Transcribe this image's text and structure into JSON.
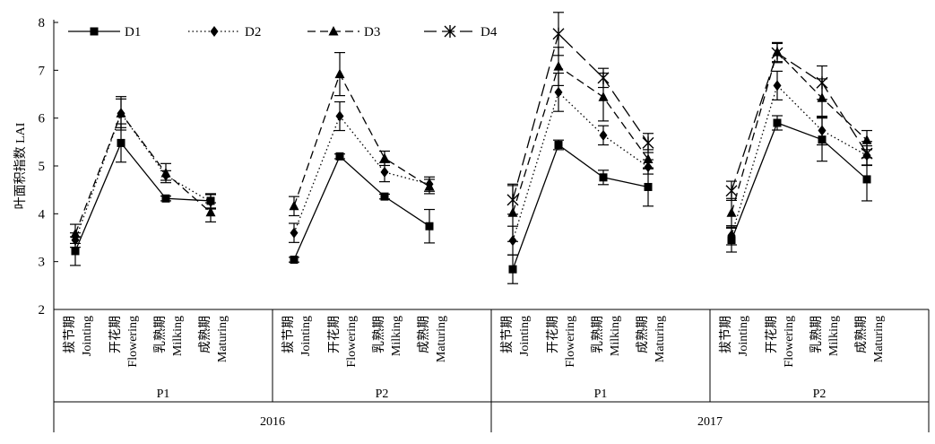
{
  "chart_data": {
    "type": "line",
    "ylabel": "叶面积指数 LAI",
    "ylim": [
      2,
      8
    ],
    "yticks": [
      2,
      3,
      4,
      5,
      6,
      7,
      8
    ],
    "grid": false,
    "legend_position": "top",
    "stage_labels": [
      {
        "zh": "拔节期",
        "en": "Jointing"
      },
      {
        "zh": "开花期",
        "en": "Flowering"
      },
      {
        "zh": "乳熟期",
        "en": "Milking"
      },
      {
        "zh": "成熟期",
        "en": "Maturing"
      }
    ],
    "groups": [
      {
        "period": "P1",
        "year": "2016"
      },
      {
        "period": "P2",
        "year": "2016"
      },
      {
        "period": "P1",
        "year": "2017"
      },
      {
        "period": "P2",
        "year": "2017"
      }
    ],
    "years": [
      "2016",
      "2017"
    ],
    "series": [
      {
        "name": "D1",
        "marker": "square",
        "dash": "solid",
        "values": [
          [
            3.22,
            5.48,
            4.32,
            4.27
          ],
          [
            3.04,
            5.2,
            4.36,
            3.74
          ],
          [
            2.84,
            5.44,
            4.76,
            4.56
          ],
          [
            3.45,
            5.9,
            5.55,
            4.72
          ]
        ],
        "errors": [
          [
            0.3,
            0.4,
            0.05,
            0.15
          ],
          [
            0.05,
            0.05,
            0.05,
            0.35
          ],
          [
            0.3,
            0.1,
            0.15,
            0.4
          ],
          [
            0.25,
            0.15,
            0.45,
            0.45
          ]
        ]
      },
      {
        "name": "D2",
        "marker": "diamond",
        "dash": "dotted",
        "values": [
          [
            3.45,
            6.1,
            4.8,
            4.25
          ],
          [
            3.6,
            6.04,
            4.87,
            4.62
          ],
          [
            3.44,
            6.54,
            5.64,
            4.98
          ],
          [
            3.55,
            6.68,
            5.74,
            5.22
          ]
        ],
        "errors": [
          [
            0.15,
            0.3,
            0.1,
            0.15
          ],
          [
            0.2,
            0.3,
            0.2,
            0.15
          ],
          [
            0.3,
            0.4,
            0.2,
            0.15
          ],
          [
            0.2,
            0.3,
            0.3,
            0.2
          ]
        ]
      },
      {
        "name": "D3",
        "marker": "triangle",
        "dash": "dashed",
        "values": [
          [
            3.58,
            6.1,
            4.85,
            4.03
          ],
          [
            4.16,
            6.92,
            5.16,
            4.57
          ],
          [
            4.02,
            7.08,
            6.44,
            5.14
          ],
          [
            4.02,
            7.38,
            6.42,
            5.54
          ]
        ],
        "errors": [
          [
            0.2,
            0.35,
            0.2,
            0.2
          ],
          [
            0.2,
            0.45,
            0.15,
            0.15
          ],
          [
            0.6,
            0.4,
            0.5,
            0.2
          ],
          [
            0.3,
            0.2,
            0.4,
            0.2
          ]
        ]
      },
      {
        "name": "D4",
        "marker": "asterisk",
        "dash": "longdash",
        "values": [
          null,
          null,
          [
            4.29,
            7.76,
            6.84,
            5.48
          ],
          [
            4.48,
            7.36,
            6.74,
            5.26
          ]
        ],
        "errors": [
          null,
          null,
          [
            0.3,
            0.45,
            0.2,
            0.2
          ],
          [
            0.2,
            0.2,
            0.35,
            0.25
          ]
        ]
      }
    ]
  }
}
